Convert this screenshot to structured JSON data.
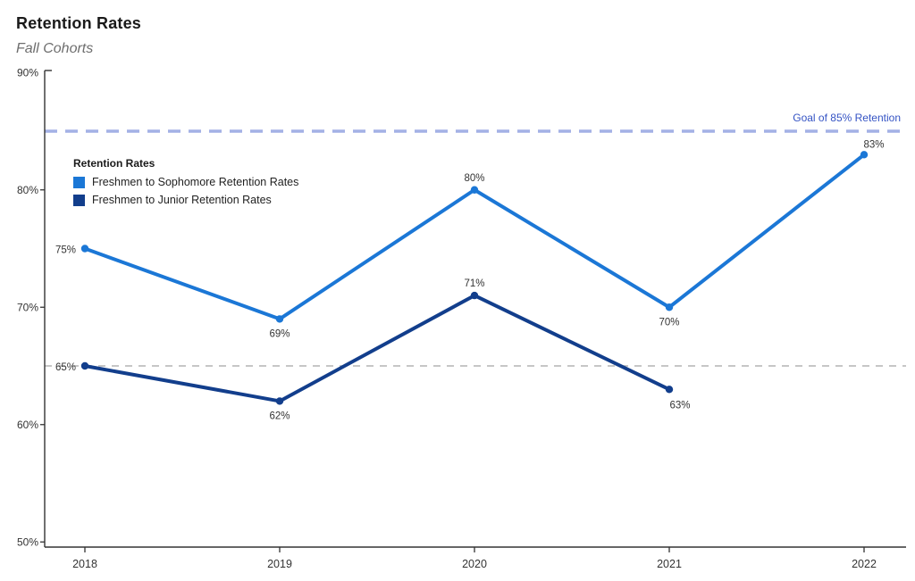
{
  "header": {
    "title": "Retention Rates",
    "subtitle": "Fall Cohorts"
  },
  "legend": {
    "title": "Retention Rates"
  },
  "chart_data": {
    "type": "line",
    "title": "Retention Rates",
    "subtitle": "Fall Cohorts",
    "x": [
      2018,
      2019,
      2020,
      2021,
      2022
    ],
    "series": [
      {
        "name": "Freshmen to Sophomore Retention Rates",
        "color": "#1B77D6",
        "values": [
          75,
          69,
          80,
          70,
          83
        ],
        "point_labels": [
          "75%",
          "69%",
          "80%",
          "70%",
          "83%"
        ],
        "label_placement": [
          "left",
          "below",
          "above",
          "below",
          "above-right"
        ]
      },
      {
        "name": "Freshmen to Junior Retention Rates",
        "color": "#123E8C",
        "values": [
          65,
          62,
          71,
          63,
          null
        ],
        "point_labels": [
          "65%",
          "62%",
          "71%",
          "63%",
          null
        ],
        "label_placement": [
          "left",
          "below",
          "above",
          "below-right",
          null
        ]
      }
    ],
    "ylim": [
      50,
      90
    ],
    "yticks": [
      50,
      60,
      70,
      80,
      90
    ],
    "ytick_labels": [
      "50%",
      "60%",
      "70%",
      "80%",
      "90%"
    ],
    "xtick_labels": [
      "2018",
      "2019",
      "2020",
      "2021",
      "2022"
    ],
    "ref_lines": [
      {
        "value": 85,
        "label": "Goal of 85% Retention",
        "color": "#A3B1E5",
        "label_color": "#3453C4",
        "style": "dashed-thick"
      },
      {
        "value": 65,
        "label": "",
        "color": "#B3B3B3",
        "style": "dashed-thin"
      }
    ],
    "grid": false,
    "legend_position": "inside-top-left",
    "axis_color": "#333333",
    "label_color": "#333333"
  }
}
